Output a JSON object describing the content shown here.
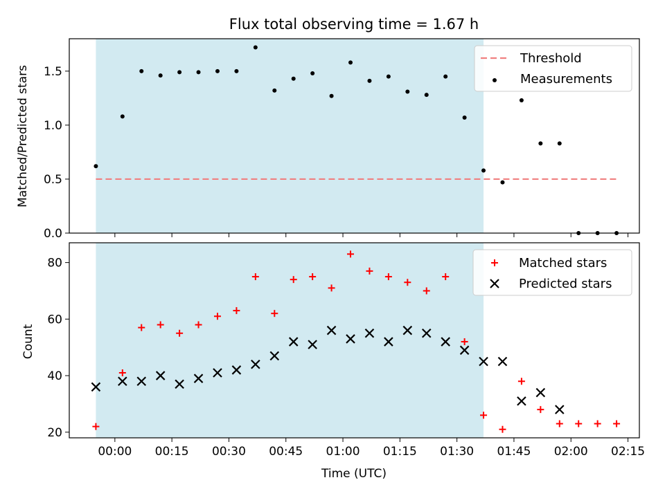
{
  "chart_data": [
    {
      "type": "scatter",
      "title": "Flux total observing time = 1.67 h",
      "ylabel": "Matched/Predicted stars",
      "xlabel": "",
      "ylim": [
        0.0,
        1.8
      ],
      "yticks": [
        0.0,
        0.5,
        1.0,
        1.5
      ],
      "ytick_labels": [
        "0.0",
        "0.5",
        "1.0",
        "1.5"
      ],
      "x_tick_labels_visible": false,
      "legend": {
        "placement": "top-right",
        "entries": [
          {
            "name": "Threshold",
            "style": "dashed-line",
            "color": "#f08080"
          },
          {
            "name": "Measurements",
            "style": "dot",
            "color": "#000000"
          }
        ]
      },
      "shaded_interval": {
        "start": "-00:05",
        "end": "01:37",
        "color": "#add8e6"
      },
      "threshold": {
        "y": 0.5,
        "x_start": "-00:05",
        "x_end": "02:12"
      },
      "series": [
        {
          "name": "Measurements",
          "marker": "dot",
          "color": "#000000",
          "x": [
            "-00:05",
            "00:02",
            "00:07",
            "00:12",
            "00:17",
            "00:22",
            "00:27",
            "00:32",
            "00:37",
            "00:42",
            "00:47",
            "00:52",
            "00:57",
            "01:02",
            "01:07",
            "01:12",
            "01:17",
            "01:22",
            "01:27",
            "01:32",
            "01:37",
            "01:42",
            "01:47",
            "01:52",
            "01:57",
            "02:02",
            "02:07",
            "02:12"
          ],
          "y": [
            0.62,
            1.08,
            1.5,
            1.46,
            1.49,
            1.49,
            1.5,
            1.5,
            1.72,
            1.32,
            1.43,
            1.48,
            1.27,
            1.58,
            1.41,
            1.45,
            1.31,
            1.28,
            1.45,
            1.07,
            0.58,
            0.47,
            1.23,
            0.83,
            0.83,
            0.0,
            0.0,
            0.0
          ]
        }
      ]
    },
    {
      "type": "scatter",
      "title": "",
      "xlabel": "Time (UTC)",
      "ylabel": "Count",
      "ylim": [
        18,
        87
      ],
      "yticks": [
        20,
        40,
        60,
        80
      ],
      "ytick_labels": [
        "20",
        "40",
        "60",
        "80"
      ],
      "xticks": [
        "00:00",
        "00:15",
        "00:30",
        "00:45",
        "01:00",
        "01:15",
        "01:30",
        "01:45",
        "02:00",
        "02:15"
      ],
      "xlim": [
        "-00:12",
        "02:18"
      ],
      "legend": {
        "placement": "top-right",
        "entries": [
          {
            "name": "Matched stars",
            "style": "plus",
            "color": "#ff0000"
          },
          {
            "name": "Predicted stars",
            "style": "x",
            "color": "#000000"
          }
        ]
      },
      "shaded_interval": {
        "start": "-00:05",
        "end": "01:37",
        "color": "#add8e6"
      },
      "series": [
        {
          "name": "Matched stars",
          "marker": "plus",
          "color": "#ff0000",
          "x": [
            "-00:05",
            "00:02",
            "00:07",
            "00:12",
            "00:17",
            "00:22",
            "00:27",
            "00:32",
            "00:37",
            "00:42",
            "00:47",
            "00:52",
            "00:57",
            "01:02",
            "01:07",
            "01:12",
            "01:17",
            "01:22",
            "01:27",
            "01:32",
            "01:37",
            "01:42",
            "01:47",
            "01:52",
            "01:57",
            "02:02",
            "02:07",
            "02:12"
          ],
          "y": [
            22,
            41,
            57,
            58,
            55,
            58,
            61,
            63,
            75,
            62,
            74,
            75,
            71,
            83,
            77,
            75,
            73,
            70,
            75,
            52,
            26,
            21,
            38,
            28,
            23,
            23,
            23,
            23
          ]
        },
        {
          "name": "Predicted stars",
          "marker": "x",
          "color": "#000000",
          "x": [
            "-00:05",
            "00:02",
            "00:07",
            "00:12",
            "00:17",
            "00:22",
            "00:27",
            "00:32",
            "00:37",
            "00:42",
            "00:47",
            "00:52",
            "00:57",
            "01:02",
            "01:07",
            "01:12",
            "01:17",
            "01:22",
            "01:27",
            "01:32",
            "01:37",
            "01:42",
            "01:47",
            "01:52",
            "01:57"
          ],
          "y": [
            36,
            38,
            38,
            40,
            37,
            39,
            41,
            42,
            44,
            47,
            52,
            51,
            56,
            53,
            55,
            52,
            56,
            55,
            52,
            49,
            45,
            45,
            31,
            34,
            28
          ]
        }
      ]
    }
  ]
}
